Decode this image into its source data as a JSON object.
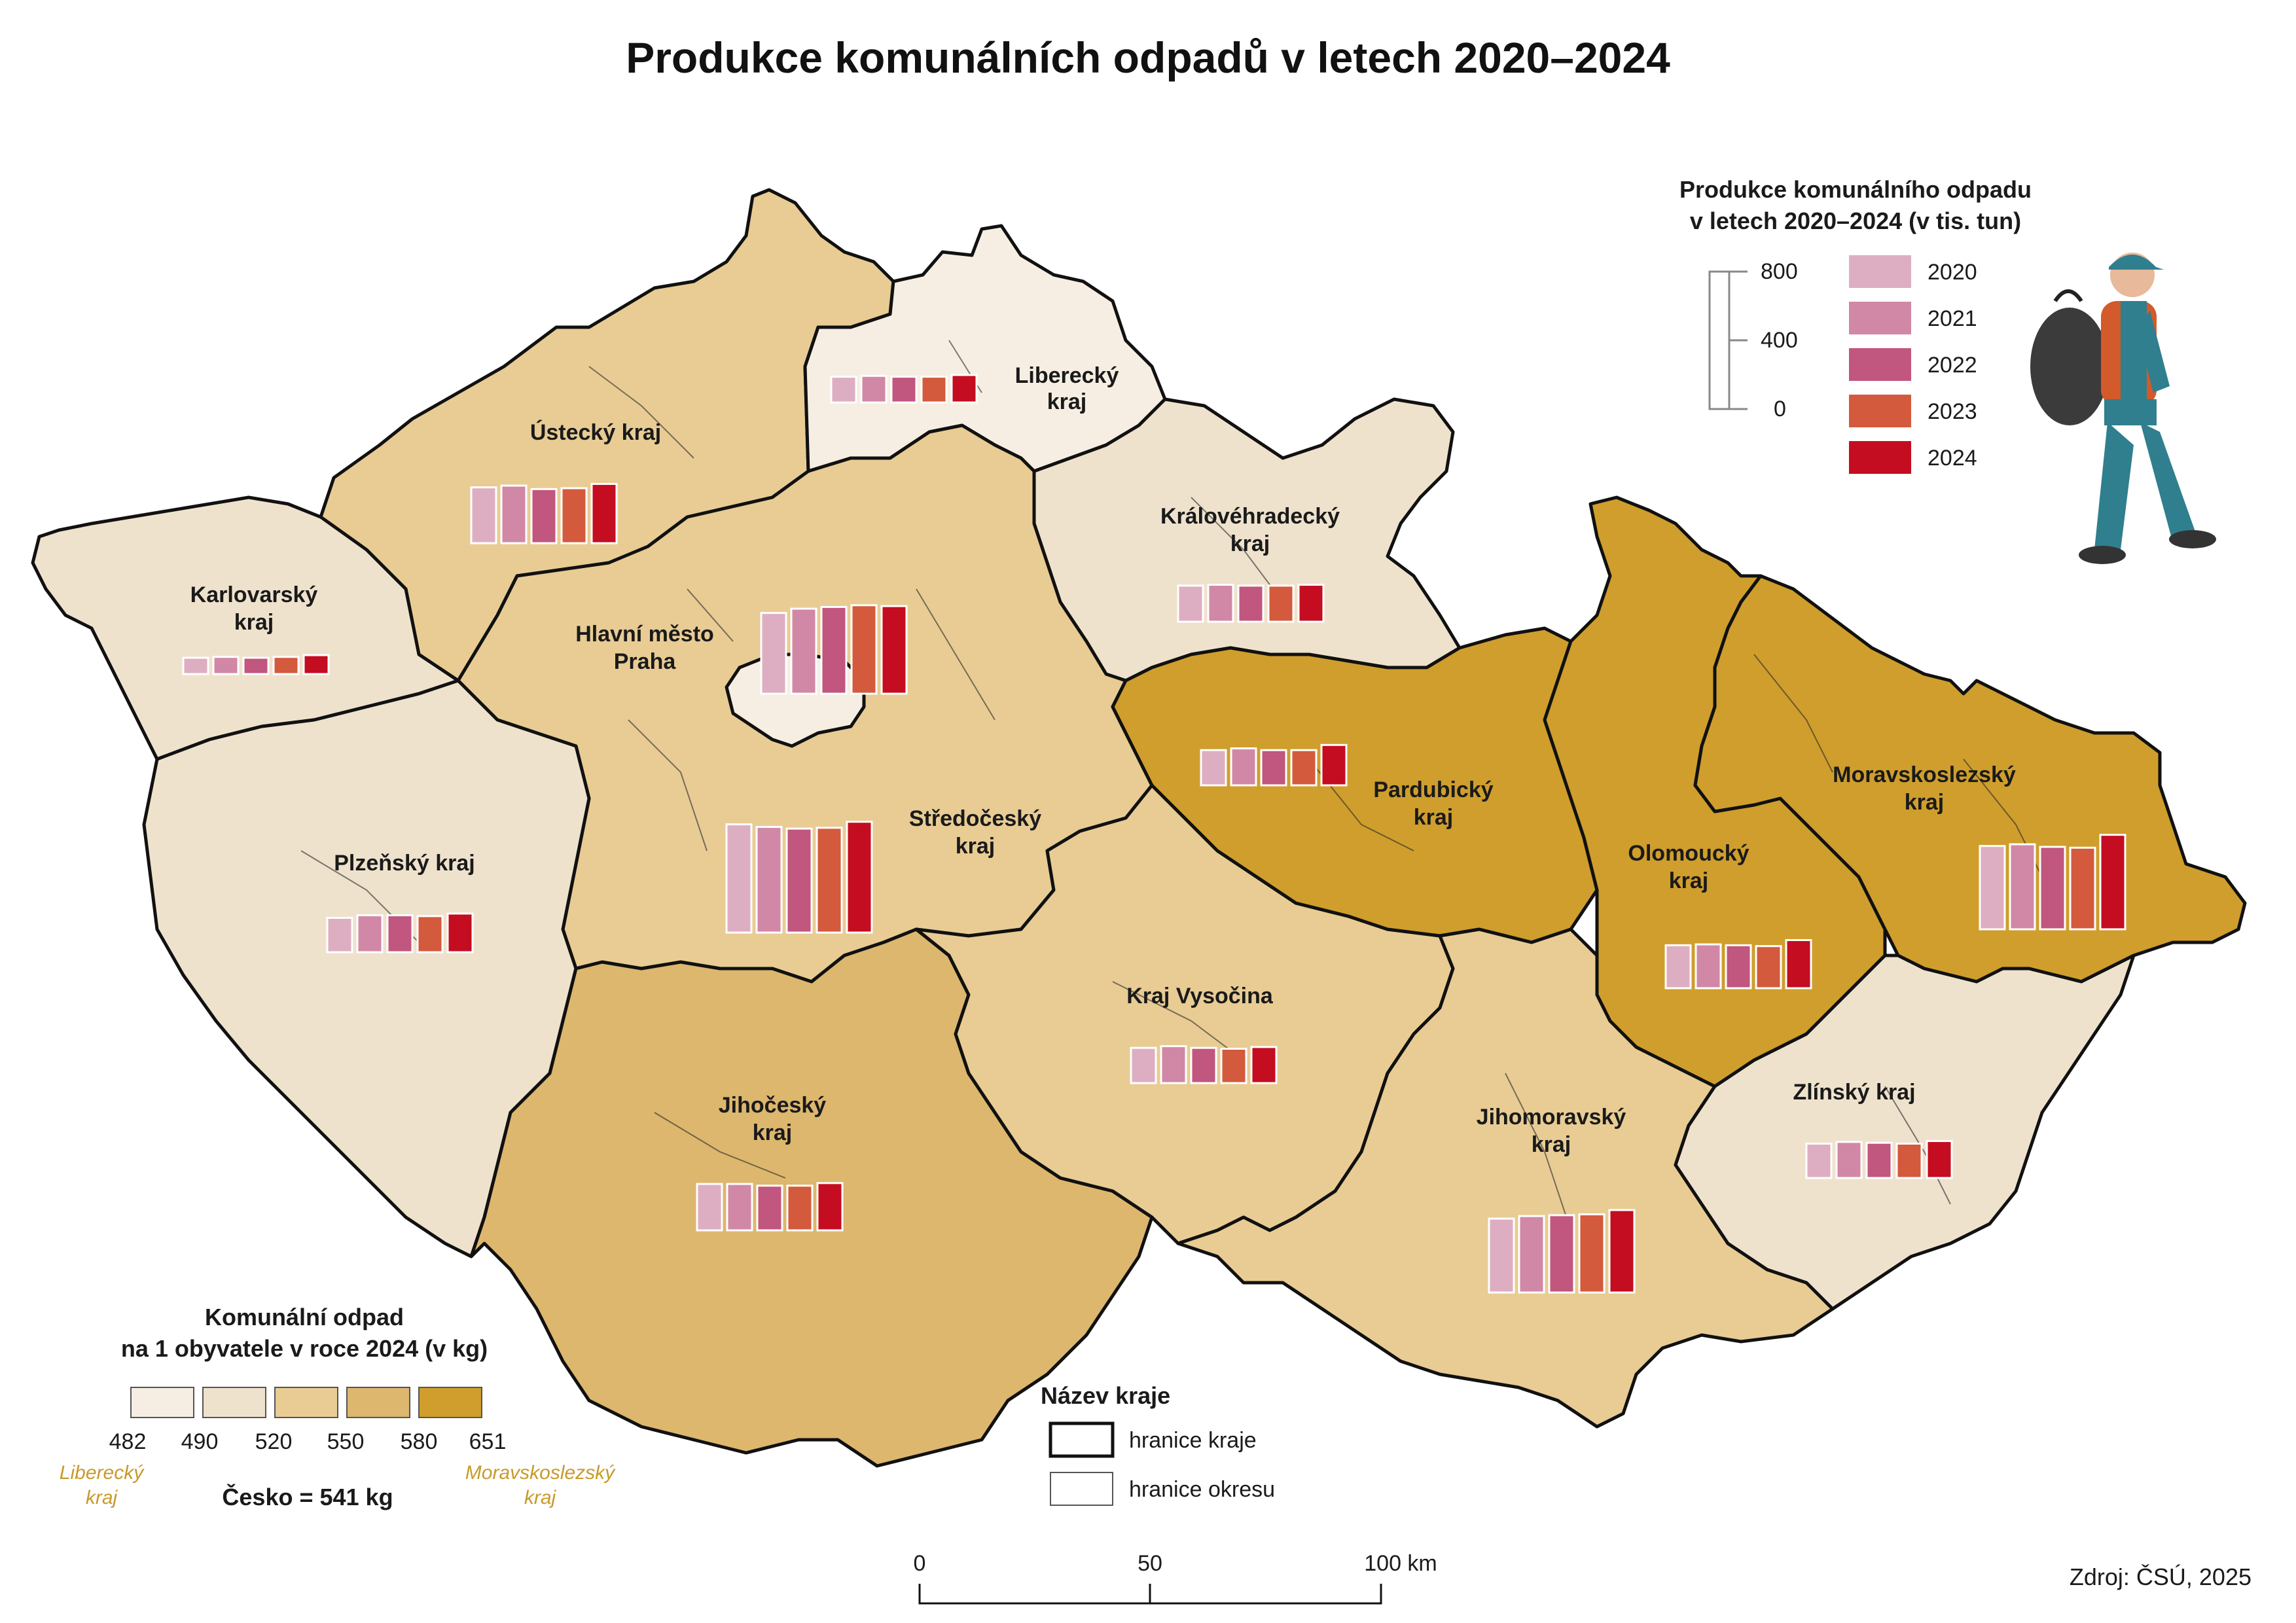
{
  "title": "Produkce komunálních odpadů v letech 2020–2024",
  "colors": {
    "y2020": "#ddaec2",
    "y2021": "#d088a6",
    "y2022": "#c1567f",
    "y2023": "#d35a3c",
    "y2024": "#c40d20",
    "class1": "#f6eee2",
    "class2": "#efe2cd",
    "class3": "#e8cc94",
    "class4": "#ddb76e",
    "class5": "#cf9e2c",
    "border": "#111111"
  },
  "bar_legend": {
    "title_line1": "Produkce komunálního odpadu",
    "title_line2": "v letech 2020–2024 (v tis. tun)",
    "scale_ticks": [
      "800",
      "400",
      "0"
    ],
    "years": [
      "2020",
      "2021",
      "2022",
      "2023",
      "2024"
    ]
  },
  "choropleth_legend": {
    "title_line1": "Komunální odpad",
    "title_line2": "na 1 obyvatele v roce 2024 (v kg)",
    "breaks": [
      "482",
      "490",
      "520",
      "550",
      "580",
      "651"
    ],
    "min_region_line1": "Liberecký",
    "min_region_line2": "kraj",
    "max_region_line1": "Moravskoslezský",
    "max_region_line2": "kraj",
    "national": "Česko = 541 kg"
  },
  "boundary_legend": {
    "title": "Název kraje",
    "region_border": "hranice kraje",
    "district_border": "hranice okresu"
  },
  "scale_bar": {
    "ticks": [
      "0",
      "50",
      "100 km"
    ]
  },
  "source": "Zdroj: ČSÚ, 2025",
  "regions": [
    {
      "id": "liberecky",
      "line1": "Liberecký",
      "line2": "kraj",
      "class": 1,
      "values": [
        150,
        155,
        150,
        150,
        160
      ]
    },
    {
      "id": "ustecky",
      "line1": "Ústecký kraj",
      "line2": "",
      "class": 3,
      "values": [
        325,
        335,
        315,
        320,
        345
      ]
    },
    {
      "id": "karlovarsky",
      "line1": "Karlovarský",
      "line2": "kraj",
      "class": 2,
      "values": [
        95,
        100,
        95,
        100,
        110
      ]
    },
    {
      "id": "praha",
      "line1": "Hlavní město",
      "line2": "Praha",
      "class": 1,
      "values": [
        470,
        495,
        505,
        515,
        510
      ]
    },
    {
      "id": "stredocesky",
      "line1": "Středočeský",
      "line2": "kraj",
      "class": 3,
      "values": [
        630,
        615,
        605,
        610,
        645
      ]
    },
    {
      "id": "kralovehradecky",
      "line1": "Královéhradecký",
      "line2": "kraj",
      "class": 2,
      "values": [
        210,
        215,
        210,
        210,
        215
      ]
    },
    {
      "id": "pardubicky",
      "line1": "Pardubický",
      "line2": "kraj",
      "class": 5,
      "values": [
        205,
        215,
        205,
        205,
        235
      ]
    },
    {
      "id": "plzensky",
      "line1": "Plzeňský kraj",
      "line2": "",
      "class": 2,
      "values": [
        200,
        215,
        215,
        210,
        225
      ]
    },
    {
      "id": "vysocina",
      "line1": "Kraj Vysočina",
      "line2": "",
      "class": 3,
      "values": [
        205,
        215,
        205,
        200,
        210
      ]
    },
    {
      "id": "jihocesky",
      "line1": "Jihočeský",
      "line2": "kraj",
      "class": 4,
      "values": [
        270,
        270,
        260,
        260,
        275
      ]
    },
    {
      "id": "jihomoravsky",
      "line1": "Jihomoravský",
      "line2": "kraj",
      "class": 3,
      "values": [
        430,
        445,
        450,
        455,
        480
      ]
    },
    {
      "id": "olomoucky",
      "line1": "Olomoucký",
      "line2": "kraj",
      "class": 5,
      "values": [
        250,
        255,
        250,
        245,
        280
      ]
    },
    {
      "id": "moravskoslezsky",
      "line1": "Moravskoslezský",
      "line2": "kraj",
      "class": 5,
      "values": [
        485,
        495,
        480,
        475,
        550
      ]
    },
    {
      "id": "zlinsky",
      "line1": "Zlínský kraj",
      "line2": "",
      "class": 2,
      "values": [
        200,
        210,
        205,
        200,
        215
      ]
    }
  ]
}
